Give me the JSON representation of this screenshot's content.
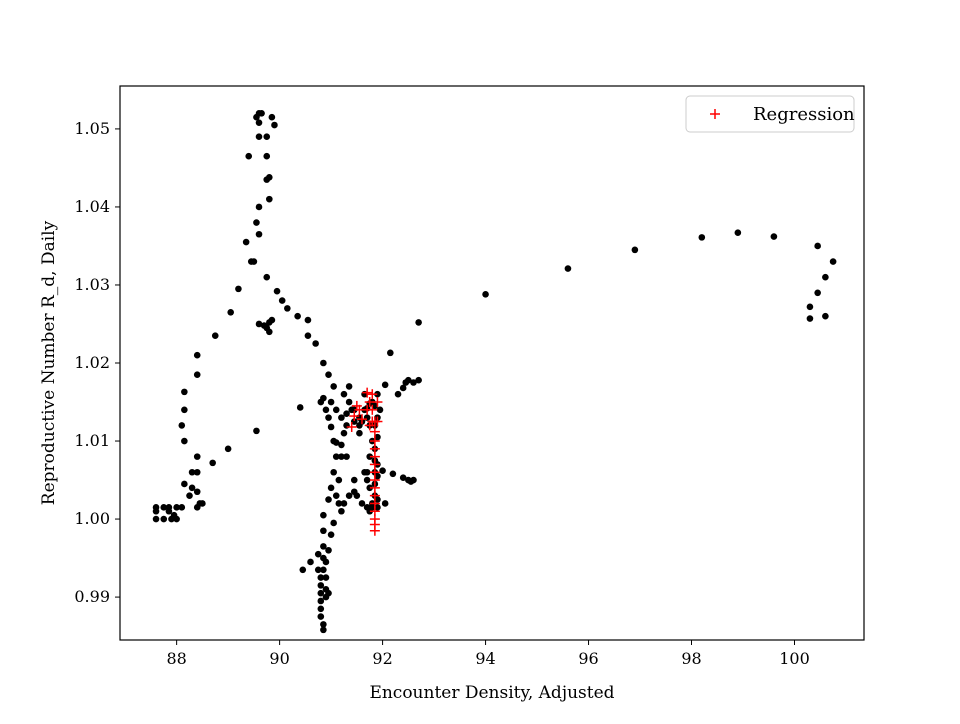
{
  "chart_data": {
    "type": "scatter",
    "title": "",
    "xlabel": "Encounter Density, Adjusted",
    "ylabel": "Reproductive Number R_d, Daily",
    "xlim": [
      86.9,
      101.35
    ],
    "ylim": [
      0.9845,
      1.0555
    ],
    "xticks": [
      88,
      90,
      92,
      94,
      96,
      98,
      100
    ],
    "yticks": [
      0.99,
      1.0,
      1.01,
      1.02,
      1.03,
      1.04,
      1.05
    ],
    "grid": false,
    "legend_position": "top-right",
    "legend": [
      "Regression"
    ],
    "series": [
      {
        "name": "",
        "marker": "dot",
        "color": "#000000",
        "points": [
          [
            87.6,
            1.0
          ],
          [
            87.6,
            1.001
          ],
          [
            87.6,
            1.0015
          ],
          [
            87.75,
            1.0
          ],
          [
            87.75,
            1.0015
          ],
          [
            87.85,
            1.001
          ],
          [
            87.85,
            1.0015
          ],
          [
            87.9,
            1.0
          ],
          [
            87.95,
            1.0005
          ],
          [
            88.0,
            1.0
          ],
          [
            88.0,
            1.0015
          ],
          [
            88.1,
            1.0015
          ],
          [
            88.15,
            1.0045
          ],
          [
            88.25,
            1.003
          ],
          [
            88.3,
            1.004
          ],
          [
            88.3,
            1.006
          ],
          [
            88.4,
            1.0015
          ],
          [
            88.4,
            1.0035
          ],
          [
            88.4,
            1.006
          ],
          [
            88.4,
            1.008
          ],
          [
            88.45,
            1.002
          ],
          [
            88.5,
            1.002
          ],
          [
            88.7,
            1.0072
          ],
          [
            89.0,
            1.009
          ],
          [
            88.1,
            1.012
          ],
          [
            88.15,
            1.01
          ],
          [
            88.15,
            1.014
          ],
          [
            88.15,
            1.0163
          ],
          [
            88.4,
            1.0185
          ],
          [
            88.4,
            1.021
          ],
          [
            88.75,
            1.0235
          ],
          [
            89.05,
            1.0265
          ],
          [
            89.2,
            1.0295
          ],
          [
            89.35,
            1.0355
          ],
          [
            89.45,
            1.033
          ],
          [
            89.5,
            1.033
          ],
          [
            89.55,
            1.038
          ],
          [
            89.6,
            1.0365
          ],
          [
            89.6,
            1.04
          ],
          [
            89.4,
            1.0465
          ],
          [
            89.55,
            1.0515
          ],
          [
            89.6,
            1.052
          ],
          [
            89.65,
            1.052
          ],
          [
            89.6,
            1.0508
          ],
          [
            89.6,
            1.049
          ],
          [
            89.75,
            1.049
          ],
          [
            89.75,
            1.0465
          ],
          [
            89.75,
            1.0435
          ],
          [
            89.8,
            1.0438
          ],
          [
            89.8,
            1.041
          ],
          [
            89.85,
            1.0515
          ],
          [
            89.9,
            1.0505
          ],
          [
            89.6,
            1.025
          ],
          [
            89.7,
            1.0248
          ],
          [
            89.75,
            1.0245
          ],
          [
            89.8,
            1.0252
          ],
          [
            89.85,
            1.0255
          ],
          [
            89.8,
            1.024
          ],
          [
            89.55,
            1.0113
          ],
          [
            89.75,
            1.031
          ],
          [
            89.95,
            1.0292
          ],
          [
            90.05,
            1.028
          ],
          [
            90.15,
            1.027
          ],
          [
            90.35,
            1.026
          ],
          [
            90.55,
            1.0255
          ],
          [
            90.55,
            1.0235
          ],
          [
            90.7,
            1.0225
          ],
          [
            90.85,
            1.02
          ],
          [
            90.95,
            1.0185
          ],
          [
            91.05,
            1.017
          ],
          [
            90.85,
            1.0155
          ],
          [
            91.0,
            1.015
          ],
          [
            91.1,
            1.014
          ],
          [
            91.2,
            1.013
          ],
          [
            91.3,
            1.012
          ],
          [
            91.45,
            1.0125
          ],
          [
            91.55,
            1.013
          ],
          [
            91.65,
            1.014
          ],
          [
            91.8,
            1.015
          ],
          [
            91.9,
            1.016
          ],
          [
            92.05,
            1.0172
          ],
          [
            92.15,
            1.0213
          ],
          [
            92.3,
            1.016
          ],
          [
            92.4,
            1.0168
          ],
          [
            92.45,
            1.0175
          ],
          [
            92.5,
            1.0178
          ],
          [
            92.6,
            1.0175
          ],
          [
            92.7,
            1.0178
          ],
          [
            92.7,
            1.0252
          ],
          [
            92.4,
            1.0053
          ],
          [
            92.5,
            1.005
          ],
          [
            92.55,
            1.0048
          ],
          [
            92.6,
            1.005
          ],
          [
            92.2,
            1.0058
          ],
          [
            92.0,
            1.0062
          ],
          [
            92.05,
            1.002
          ],
          [
            91.85,
            1.012
          ],
          [
            91.9,
            1.0105
          ],
          [
            91.85,
            1.009
          ],
          [
            91.85,
            1.0075
          ],
          [
            91.9,
            1.007
          ],
          [
            91.85,
            1.006
          ],
          [
            91.9,
            1.0055
          ],
          [
            91.85,
            1.0045
          ],
          [
            91.85,
            1.003
          ],
          [
            91.9,
            1.0025
          ],
          [
            91.8,
            1.0015
          ],
          [
            91.9,
            1.0015
          ],
          [
            91.75,
            1.001
          ],
          [
            91.75,
            1.004
          ],
          [
            91.7,
            1.005
          ],
          [
            91.7,
            1.006
          ],
          [
            91.75,
            1.008
          ],
          [
            91.8,
            1.01
          ],
          [
            91.75,
            1.012
          ],
          [
            91.7,
            1.013
          ],
          [
            91.75,
            1.0148
          ],
          [
            91.9,
            1.013
          ],
          [
            91.95,
            1.014
          ],
          [
            91.65,
            1.016
          ],
          [
            91.55,
            1.011
          ],
          [
            91.45,
            1.014
          ],
          [
            91.35,
            1.015
          ],
          [
            91.3,
            1.0135
          ],
          [
            91.25,
            1.011
          ],
          [
            91.2,
            1.008
          ],
          [
            91.15,
            1.005
          ],
          [
            91.15,
            1.002
          ],
          [
            91.2,
            1.001
          ],
          [
            91.05,
            0.9995
          ],
          [
            91.0,
            0.998
          ],
          [
            90.95,
            0.996
          ],
          [
            90.9,
            0.9945
          ],
          [
            90.85,
            0.9935
          ],
          [
            90.8,
            0.9925
          ],
          [
            90.8,
            0.9915
          ],
          [
            90.8,
            0.9905
          ],
          [
            90.8,
            0.9895
          ],
          [
            90.8,
            0.9885
          ],
          [
            90.8,
            0.9875
          ],
          [
            90.85,
            0.9865
          ],
          [
            90.85,
            0.9858
          ],
          [
            90.9,
            0.99
          ],
          [
            90.9,
            0.991
          ],
          [
            90.9,
            0.9925
          ],
          [
            90.95,
            0.9905
          ],
          [
            90.85,
            0.995
          ],
          [
            90.85,
            0.9965
          ],
          [
            90.85,
            0.9985
          ],
          [
            90.85,
            1.0005
          ],
          [
            90.95,
            1.0025
          ],
          [
            90.75,
            0.9935
          ],
          [
            90.45,
            0.9935
          ],
          [
            90.6,
            0.9945
          ],
          [
            90.75,
            0.9955
          ],
          [
            91.05,
            1.006
          ],
          [
            91.1,
            1.008
          ],
          [
            91.05,
            1.01
          ],
          [
            91.0,
            1.0118
          ],
          [
            90.95,
            1.013
          ],
          [
            90.9,
            1.014
          ],
          [
            90.8,
            1.015
          ],
          [
            90.4,
            1.0143
          ],
          [
            91.0,
            1.004
          ],
          [
            91.1,
            1.003
          ],
          [
            91.25,
            1.002
          ],
          [
            91.35,
            1.003
          ],
          [
            91.45,
            1.0035
          ],
          [
            91.5,
            1.003
          ],
          [
            91.6,
            1.002
          ],
          [
            91.7,
            1.0015
          ],
          [
            91.45,
            1.005
          ],
          [
            91.3,
            1.008
          ],
          [
            91.2,
            1.0095
          ],
          [
            91.1,
            1.0098
          ],
          [
            91.25,
            1.016
          ],
          [
            91.35,
            1.017
          ],
          [
            91.4,
            1.014
          ],
          [
            91.55,
            1.012
          ],
          [
            91.6,
            1.0125
          ],
          [
            91.7,
            1.0142
          ],
          [
            91.85,
            1.0145
          ],
          [
            91.8,
            1.002
          ],
          [
            91.65,
            1.006
          ],
          [
            94.0,
            1.0288
          ],
          [
            95.6,
            1.0321
          ],
          [
            96.9,
            1.0345
          ],
          [
            98.2,
            1.0361
          ],
          [
            98.9,
            1.0367
          ],
          [
            99.6,
            1.0362
          ],
          [
            100.45,
            1.035
          ],
          [
            100.75,
            1.033
          ],
          [
            100.6,
            1.031
          ],
          [
            100.45,
            1.029
          ],
          [
            100.3,
            1.0272
          ],
          [
            100.3,
            1.0257
          ],
          [
            100.6,
            1.026
          ]
        ]
      },
      {
        "name": "Regression",
        "marker": "plus",
        "color": "#ff0000",
        "points": [
          [
            91.5,
            1.0145
          ],
          [
            91.45,
            1.0132
          ],
          [
            91.4,
            1.0118
          ],
          [
            91.55,
            1.014
          ],
          [
            91.6,
            1.0128
          ],
          [
            91.7,
            1.0162
          ],
          [
            91.75,
            1.015
          ],
          [
            91.8,
            1.016
          ],
          [
            91.8,
            1.014
          ],
          [
            91.8,
            1.0125
          ],
          [
            91.85,
            1.0125
          ],
          [
            91.85,
            1.0112
          ],
          [
            91.85,
            1.01
          ],
          [
            91.85,
            1.009
          ],
          [
            91.85,
            1.008
          ],
          [
            91.85,
            1.007
          ],
          [
            91.85,
            1.006
          ],
          [
            91.85,
            1.005
          ],
          [
            91.85,
            1.004
          ],
          [
            91.85,
            1.003
          ],
          [
            91.85,
            1.002
          ],
          [
            91.85,
            1.001
          ],
          [
            91.85,
            1.0
          ],
          [
            91.85,
            0.9993
          ],
          [
            91.85,
            0.9985
          ],
          [
            91.9,
            1.0125
          ],
          [
            91.9,
            1.015
          ],
          [
            91.75,
            1.012
          ],
          [
            91.7,
            1.014
          ]
        ]
      }
    ]
  }
}
